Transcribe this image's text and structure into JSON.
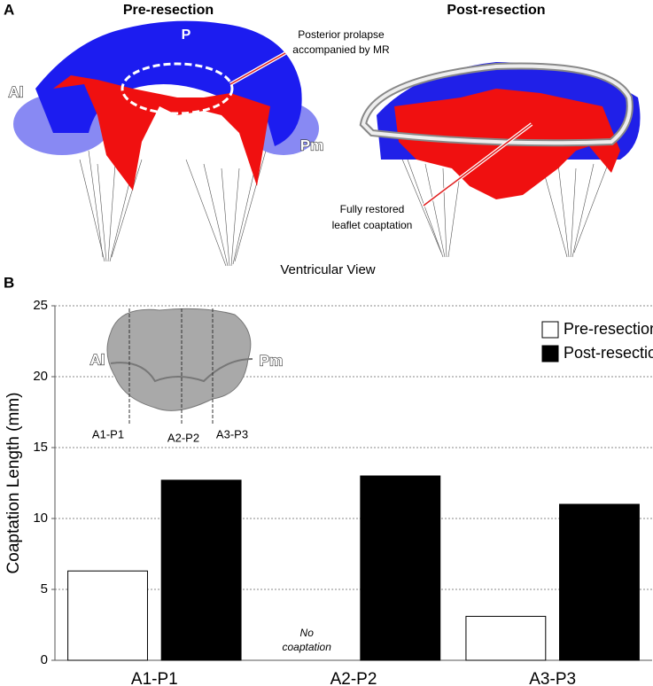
{
  "panel_a": {
    "label": "A",
    "left_title": "Pre-resection",
    "right_title": "Post-resection",
    "leaflet_labels": [
      "P",
      "Al",
      "Pm"
    ],
    "left_note": [
      "Posterior prolapse",
      "accompanied by MR"
    ],
    "right_note": [
      "Fully restored",
      "leaflet coaptation"
    ],
    "caption": "Ventricular View"
  },
  "chart_data": {
    "type": "bar",
    "panel_label": "B",
    "ylabel": "Coaptation Length (mm)",
    "categories": [
      "A1-P1",
      "A2-P2",
      "A3-P3"
    ],
    "series": [
      {
        "name": "Pre-resection",
        "color": "#ffffff",
        "edgecolor": "#000000",
        "values": [
          6.3,
          0,
          3.1
        ]
      },
      {
        "name": "Post-resection",
        "color": "#000000",
        "edgecolor": "#000000",
        "values": [
          12.7,
          13.0,
          11.0
        ]
      }
    ],
    "note": [
      "No",
      "coaptation"
    ],
    "ylim": [
      0,
      25
    ],
    "yticks": [
      0,
      5,
      10,
      15,
      20,
      25
    ],
    "grid": true,
    "legend": "upper right",
    "inset": {
      "left": "Al",
      "right": "Pm",
      "cuts": [
        "A1-P1",
        "A2-P2",
        "A3-P3"
      ]
    }
  }
}
